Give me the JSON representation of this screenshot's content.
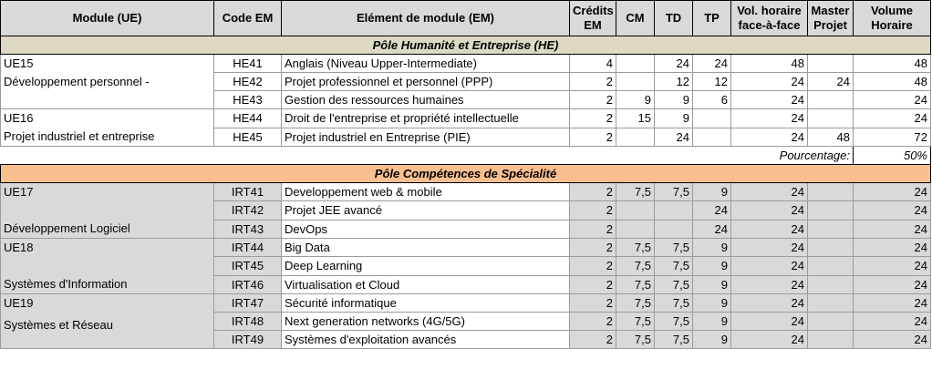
{
  "headers": {
    "module": "Module (UE)",
    "code": "Code EM",
    "element": "Elément de module (EM)",
    "credits_line1": "Crédits",
    "credits_line2": "EM",
    "cm": "CM",
    "td": "TD",
    "tp": "TP",
    "vol_line1": "Vol. horaire",
    "vol_line2": "face-à-face",
    "master_line1": "Master",
    "master_line2": "Projet",
    "volume_line1": "Volume",
    "volume_line2": "Horaire"
  },
  "section1": "Pôle Humanité et Entreprise (HE)",
  "ue15": {
    "code": "UE15",
    "name": "Développement personnel -"
  },
  "ue16": {
    "code": "UE16",
    "name": "Projet industriel et entreprise"
  },
  "rows1": [
    {
      "code": "HE41",
      "em": "Anglais (Niveau Upper-Intermediate)",
      "credits": "4",
      "cm": "",
      "td": "24",
      "tp": "24",
      "vol": "48",
      "master": "",
      "volume": "48"
    },
    {
      "code": "HE42",
      "em": "Projet professionnel et personnel (PPP)",
      "credits": "2",
      "cm": "",
      "td": "12",
      "tp": "12",
      "vol": "24",
      "master": "24",
      "volume": "48"
    },
    {
      "code": "HE43",
      "em": "Gestion des ressources humaines",
      "credits": "2",
      "cm": "9",
      "td": "9",
      "tp": "6",
      "vol": "24",
      "master": "",
      "volume": "24"
    },
    {
      "code": "HE44",
      "em": "Droit de l'entreprise et propriété intellectuelle",
      "credits": "2",
      "cm": "15",
      "td": "9",
      "tp": "",
      "vol": "24",
      "master": "",
      "volume": "24"
    },
    {
      "code": "HE45",
      "em": "Projet industriel en Entreprise (PIE)",
      "credits": "2",
      "cm": "",
      "td": "24",
      "tp": "",
      "vol": "24",
      "master": "48",
      "volume": "72"
    }
  ],
  "percentage": {
    "label": "Pourcentage:",
    "value": "50%"
  },
  "section2": "Pôle Compétences de Spécialité",
  "ue17": {
    "code": "UE17",
    "name": "Développement Logiciel"
  },
  "ue18": {
    "code": "UE18",
    "name": "Systèmes d'Information"
  },
  "ue19": {
    "code": "UE19",
    "name": "Systèmes et Réseau"
  },
  "rows2": [
    {
      "code": "IRT41",
      "em": "Developpement web & mobile",
      "credits": "2",
      "cm": "7,5",
      "td": "7,5",
      "tp": "9",
      "vol": "24",
      "master": "",
      "volume": "24"
    },
    {
      "code": "IRT42",
      "em": "Projet JEE avancé",
      "credits": "2",
      "cm": "",
      "td": "",
      "tp": "24",
      "vol": "24",
      "master": "",
      "volume": "24"
    },
    {
      "code": "IRT43",
      "em": "DevOps",
      "credits": "2",
      "cm": "",
      "td": "",
      "tp": "24",
      "vol": "24",
      "master": "",
      "volume": "24"
    },
    {
      "code": "IRT44",
      "em": "Big Data",
      "credits": "2",
      "cm": "7,5",
      "td": "7,5",
      "tp": "9",
      "vol": "24",
      "master": "",
      "volume": "24"
    },
    {
      "code": "IRT45",
      "em": "Deep Learning",
      "credits": "2",
      "cm": "7,5",
      "td": "7,5",
      "tp": "9",
      "vol": "24",
      "master": "",
      "volume": "24"
    },
    {
      "code": "IRT46",
      "em": "Virtualisation et Cloud",
      "credits": "2",
      "cm": "7,5",
      "td": "7,5",
      "tp": "9",
      "vol": "24",
      "master": "",
      "volume": "24"
    },
    {
      "code": "IRT47",
      "em": "Sécurité informatique",
      "credits": "2",
      "cm": "7,5",
      "td": "7,5",
      "tp": "9",
      "vol": "24",
      "master": "",
      "volume": "24"
    },
    {
      "code": "IRT48",
      "em": "Next generation networks (4G/5G)",
      "credits": "2",
      "cm": "7,5",
      "td": "7,5",
      "tp": "9",
      "vol": "24",
      "master": "",
      "volume": "24"
    },
    {
      "code": "IRT49",
      "em": "Systèmes d'exploitation avancés",
      "credits": "2",
      "cm": "7,5",
      "td": "7,5",
      "tp": "9",
      "vol": "24",
      "master": "",
      "volume": "24"
    }
  ]
}
